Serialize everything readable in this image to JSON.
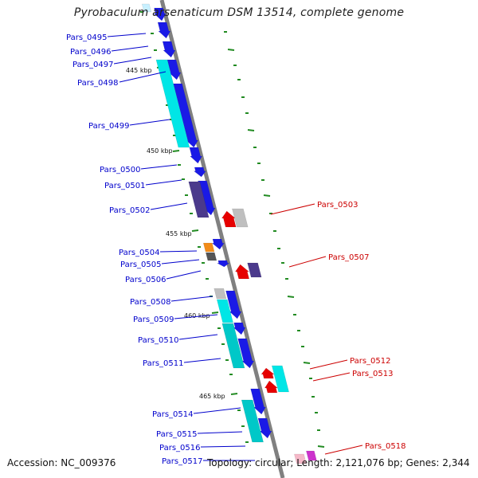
{
  "title": "Pyrobaculum arsenaticum DSM 13514, complete genome",
  "footer": {
    "accession": "Accession: NC_009376",
    "topology": "Topology: circular; Length: 2,121,076 bp; Genes: 2,344"
  },
  "scale_labels": [
    "445 kbp",
    "450 kbp",
    "455 kbp",
    "460 kbp",
    "465 kbp"
  ],
  "colors": {
    "backbone": "#808080",
    "forward_cds": "#1a1ae6",
    "other_cds": "#00e6e6",
    "dark_cds": "#4b3a8c",
    "reverse_cds": "#e60000",
    "grey_cds": "#bfbfbf",
    "orange_cds": "#f28c1a",
    "pink_cds": "#f5b8c8",
    "magenta_cds": "#cc33cc",
    "tick": "#228b22",
    "left_label": "#0000cc",
    "right_label": "#cc0000"
  },
  "left_labels": [
    "Pars_0495",
    "Pars_0496",
    "Pars_0497",
    "Pars_0498",
    "Pars_0499",
    "Pars_0500",
    "Pars_0501",
    "Pars_0502",
    "Pars_0504",
    "Pars_0505",
    "Pars_0506",
    "Pars_0508",
    "Pars_0509",
    "Pars_0510",
    "Pars_0511",
    "Pars_0514",
    "Pars_0515",
    "Pars_0516",
    "Pars_0517"
  ],
  "right_labels": [
    "Pars_0503",
    "Pars_0507",
    "Pars_0512",
    "Pars_0513",
    "Pars_0518"
  ]
}
